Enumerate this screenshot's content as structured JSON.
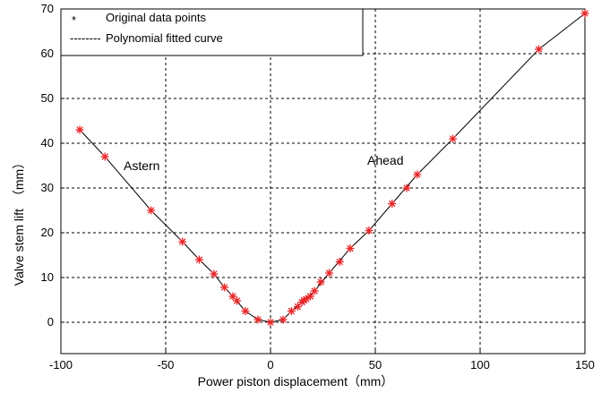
{
  "chart_data": {
    "type": "scatter",
    "xlabel": "Power piston displacement（mm）",
    "ylabel": "Valve stem lift　（mm）",
    "xlim": [
      -100,
      150
    ],
    "ylim": [
      -7,
      70
    ],
    "xticks": [
      -100,
      -50,
      0,
      50,
      100,
      150
    ],
    "yticks": [
      0,
      10,
      20,
      30,
      40,
      50,
      60,
      70
    ],
    "grid": true,
    "legend_position": "top-left",
    "legend": [
      {
        "symbol": "*",
        "label": "Original data points"
      },
      {
        "symbol": "--------",
        "label": "Polynomial fitted curve"
      }
    ],
    "annotations": [
      {
        "text": "Astern",
        "x": -70,
        "y": 35
      },
      {
        "text": "Ahead",
        "x": 52,
        "y": 35
      }
    ],
    "series": [
      {
        "style": "markers",
        "color": "#e8272a",
        "x": [
          -91,
          -79,
          -57,
          -42,
          -34,
          -27,
          -22,
          -18,
          -16,
          -12,
          -6,
          0,
          6,
          10,
          13,
          15,
          16,
          17,
          19,
          21,
          24,
          28,
          33,
          38,
          47,
          58,
          65,
          70,
          87,
          128,
          150
        ],
        "y": [
          43,
          37,
          25,
          18,
          14,
          10.8,
          7.8,
          5.8,
          4.8,
          2.5,
          0.6,
          0,
          0.6,
          2.5,
          3.5,
          4.5,
          4.9,
          5.2,
          5.8,
          7,
          9,
          11,
          13.5,
          16.5,
          20.5,
          26.5,
          30,
          33,
          41,
          61,
          69
        ]
      },
      {
        "style": "line",
        "color": "#000000",
        "x": [
          -91,
          -79,
          -57,
          -42,
          -34,
          -27,
          -22,
          -18,
          -12,
          -6,
          0,
          6,
          10,
          15,
          21,
          28,
          38,
          47,
          58,
          70,
          87,
          128,
          150
        ],
        "y": [
          43,
          37,
          25,
          18,
          14,
          10.8,
          7.8,
          5.8,
          2.5,
          0.6,
          0,
          0.6,
          2.5,
          4.5,
          7,
          11,
          16.5,
          20.5,
          26.5,
          33,
          41,
          61,
          69
        ]
      }
    ]
  }
}
